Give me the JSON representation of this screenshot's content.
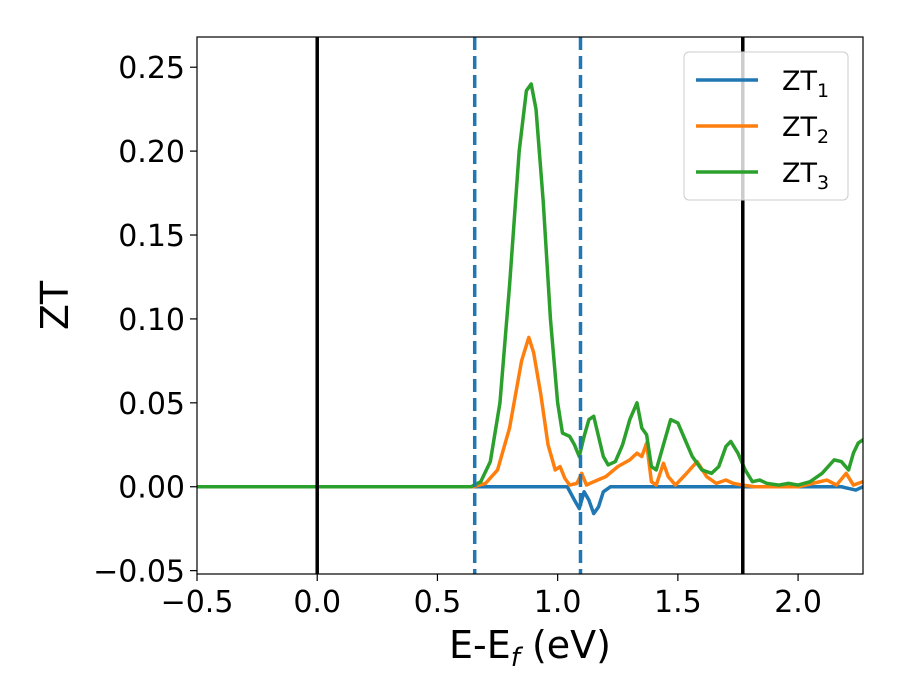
{
  "chart_data": {
    "type": "line",
    "xlabel": {
      "main": "E-E",
      "sub": "f",
      "unit": " (eV)"
    },
    "ylabel": "ZT",
    "xlim": [
      -0.5,
      2.27
    ],
    "ylim": [
      -0.052,
      0.268
    ],
    "xticks": [
      -0.5,
      0.0,
      0.5,
      1.0,
      1.5,
      2.0
    ],
    "xtick_labels": [
      "−0.5",
      "0.0",
      "0.5",
      "1.0",
      "1.5",
      "2.0"
    ],
    "yticks": [
      -0.05,
      0.0,
      0.05,
      0.1,
      0.15,
      0.2,
      0.25
    ],
    "ytick_labels": [
      "−0.05",
      "0.00",
      "0.05",
      "0.10",
      "0.15",
      "0.20",
      "0.25"
    ],
    "grid": false,
    "legend_position": "top-right",
    "vlines": [
      {
        "x": 0.0,
        "style": "solid",
        "color": "#000000"
      },
      {
        "x": 0.655,
        "style": "dashed",
        "color": "#1f77b4"
      },
      {
        "x": 1.095,
        "style": "dashed",
        "color": "#1f77b4"
      },
      {
        "x": 1.77,
        "style": "solid",
        "color": "#000000"
      }
    ],
    "series": [
      {
        "name": "ZT",
        "sub": "1",
        "color": "#1f77b4",
        "points": [
          [
            -0.5,
            0
          ],
          [
            1.0,
            0
          ],
          [
            1.04,
            0
          ],
          [
            1.07,
            -0.008
          ],
          [
            1.09,
            -0.013
          ],
          [
            1.11,
            -0.003
          ],
          [
            1.13,
            -0.008
          ],
          [
            1.15,
            -0.016
          ],
          [
            1.17,
            -0.012
          ],
          [
            1.19,
            -0.003
          ],
          [
            1.22,
            0
          ],
          [
            2.18,
            0
          ],
          [
            2.21,
            -0.001
          ],
          [
            2.24,
            -0.002
          ],
          [
            2.27,
            0
          ]
        ]
      },
      {
        "name": "ZT",
        "sub": "2",
        "color": "#ff7f0e",
        "points": [
          [
            -0.5,
            0
          ],
          [
            0.65,
            0
          ],
          [
            0.7,
            0.002
          ],
          [
            0.75,
            0.01
          ],
          [
            0.8,
            0.035
          ],
          [
            0.85,
            0.075
          ],
          [
            0.88,
            0.089
          ],
          [
            0.9,
            0.08
          ],
          [
            0.93,
            0.055
          ],
          [
            0.96,
            0.025
          ],
          [
            0.99,
            0.01
          ],
          [
            1.01,
            0.012
          ],
          [
            1.03,
            0.005
          ],
          [
            1.05,
            0.001
          ],
          [
            1.08,
            0.002
          ],
          [
            1.1,
            0.008
          ],
          [
            1.12,
            0.001
          ],
          [
            1.15,
            0.003
          ],
          [
            1.2,
            0.006
          ],
          [
            1.25,
            0.012
          ],
          [
            1.3,
            0.016
          ],
          [
            1.33,
            0.02
          ],
          [
            1.35,
            0.018
          ],
          [
            1.37,
            0.026
          ],
          [
            1.39,
            0.003
          ],
          [
            1.41,
            0.001
          ],
          [
            1.44,
            0.014
          ],
          [
            1.46,
            0.006
          ],
          [
            1.49,
            0.001
          ],
          [
            1.53,
            0.007
          ],
          [
            1.58,
            0.015
          ],
          [
            1.62,
            0.006
          ],
          [
            1.66,
            0.002
          ],
          [
            1.7,
            0.004
          ],
          [
            1.73,
            0.002
          ],
          [
            1.77,
            0.001
          ],
          [
            1.82,
            0
          ],
          [
            2.0,
            0
          ],
          [
            2.06,
            0.002
          ],
          [
            2.12,
            0.004
          ],
          [
            2.16,
            0.001
          ],
          [
            2.2,
            0.008
          ],
          [
            2.23,
            0.001
          ],
          [
            2.27,
            0.003
          ]
        ]
      },
      {
        "name": "ZT",
        "sub": "3",
        "color": "#2ca02c",
        "points": [
          [
            -0.5,
            0
          ],
          [
            0.64,
            0
          ],
          [
            0.68,
            0.003
          ],
          [
            0.72,
            0.015
          ],
          [
            0.76,
            0.05
          ],
          [
            0.8,
            0.12
          ],
          [
            0.84,
            0.2
          ],
          [
            0.87,
            0.236
          ],
          [
            0.89,
            0.24
          ],
          [
            0.91,
            0.225
          ],
          [
            0.94,
            0.17
          ],
          [
            0.97,
            0.1
          ],
          [
            1.0,
            0.05
          ],
          [
            1.02,
            0.032
          ],
          [
            1.05,
            0.03
          ],
          [
            1.07,
            0.025
          ],
          [
            1.09,
            0.018
          ],
          [
            1.11,
            0.03
          ],
          [
            1.13,
            0.04
          ],
          [
            1.15,
            0.042
          ],
          [
            1.17,
            0.03
          ],
          [
            1.19,
            0.018
          ],
          [
            1.21,
            0.013
          ],
          [
            1.24,
            0.015
          ],
          [
            1.27,
            0.025
          ],
          [
            1.3,
            0.04
          ],
          [
            1.33,
            0.05
          ],
          [
            1.35,
            0.035
          ],
          [
            1.37,
            0.031
          ],
          [
            1.39,
            0.012
          ],
          [
            1.41,
            0.01
          ],
          [
            1.44,
            0.025
          ],
          [
            1.47,
            0.04
          ],
          [
            1.5,
            0.038
          ],
          [
            1.53,
            0.028
          ],
          [
            1.56,
            0.018
          ],
          [
            1.6,
            0.01
          ],
          [
            1.64,
            0.008
          ],
          [
            1.67,
            0.012
          ],
          [
            1.7,
            0.024
          ],
          [
            1.72,
            0.027
          ],
          [
            1.75,
            0.02
          ],
          [
            1.78,
            0.01
          ],
          [
            1.81,
            0.003
          ],
          [
            1.84,
            0.004
          ],
          [
            1.87,
            0.002
          ],
          [
            1.92,
            0.001
          ],
          [
            1.96,
            0.002
          ],
          [
            2.0,
            0.001
          ],
          [
            2.05,
            0.003
          ],
          [
            2.1,
            0.008
          ],
          [
            2.15,
            0.016
          ],
          [
            2.18,
            0.015
          ],
          [
            2.21,
            0.01
          ],
          [
            2.23,
            0.02
          ],
          [
            2.25,
            0.026
          ],
          [
            2.27,
            0.028
          ]
        ]
      }
    ]
  }
}
